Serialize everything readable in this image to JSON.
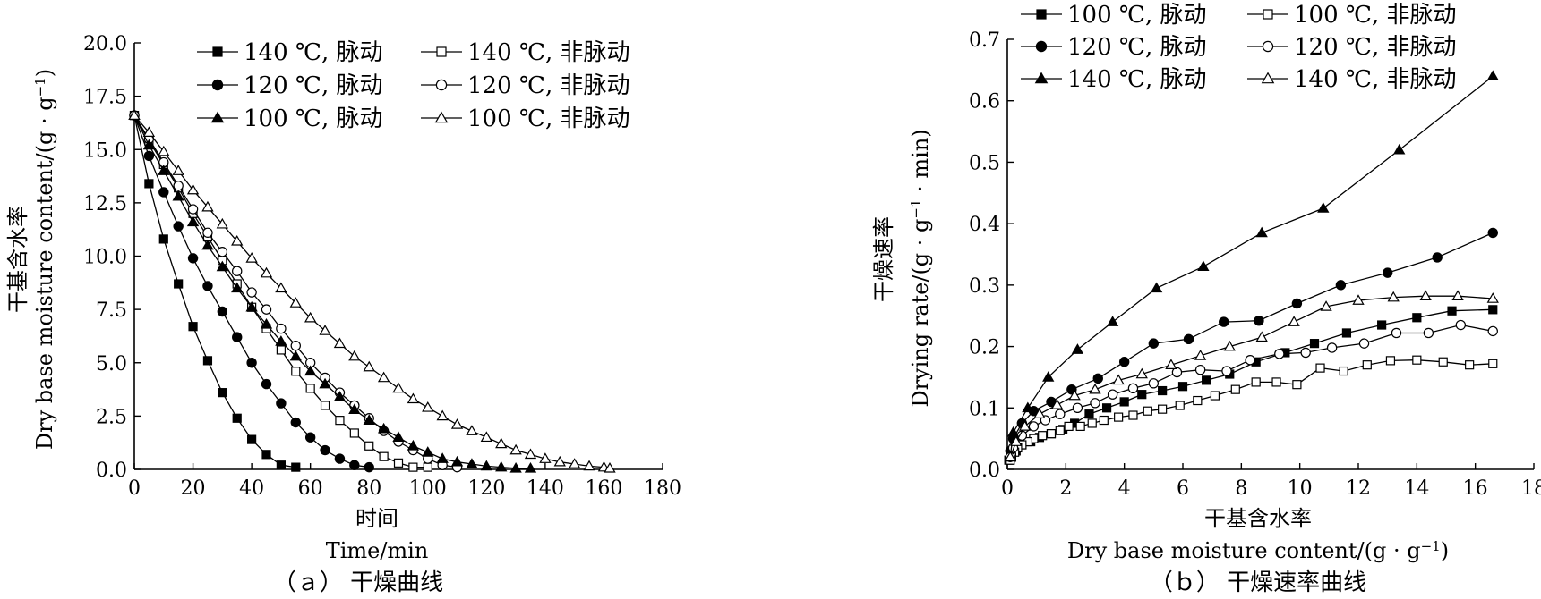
{
  "chart_data": [
    {
      "type": "line",
      "panel": "a",
      "caption": "（ａ） 干燥曲线",
      "xlabel_cn": "时间",
      "xlabel_en": "Time/min",
      "ylabel_cn": "干基含水率",
      "ylabel_en": "Dry base moisture content/(g · g",
      "ylabel_en_sup": "−1",
      "ylabel_en_end": ")",
      "xlim": [
        0,
        180
      ],
      "ylim": [
        0,
        20
      ],
      "xticks": [
        "0",
        "20",
        "40",
        "60",
        "80",
        "100",
        "120",
        "140",
        "160",
        "180"
      ],
      "yticks": [
        "0.0",
        "2.5",
        "5.0",
        "7.5",
        "10.0",
        "12.5",
        "15.0",
        "17.5",
        "20.0"
      ],
      "legend": {
        "position": "top",
        "entries": [
          "140 ℃, 脉动",
          "140 ℃, 非脉动",
          "120 ℃, 脉动",
          "120 ℃, 非脉动",
          "100 ℃, 脉动",
          "100 ℃, 非脉动"
        ]
      },
      "series": [
        {
          "name": "140 ℃, 脉动",
          "marker": "square",
          "filled": true,
          "x": [
            0,
            5,
            10,
            15,
            20,
            25,
            30,
            35,
            40,
            45,
            50,
            55
          ],
          "y": [
            16.6,
            13.4,
            10.8,
            8.7,
            6.7,
            5.1,
            3.6,
            2.4,
            1.4,
            0.7,
            0.2,
            0.1
          ]
        },
        {
          "name": "140 ℃, 非脉动",
          "marker": "square",
          "filled": false,
          "x": [
            0,
            5,
            10,
            15,
            20,
            25,
            30,
            35,
            40,
            45,
            50,
            55,
            60,
            65,
            70,
            75,
            80,
            85,
            90,
            95,
            100
          ],
          "y": [
            16.6,
            15.4,
            14.3,
            13.2,
            12.0,
            10.9,
            9.8,
            8.7,
            7.6,
            6.6,
            5.6,
            4.6,
            3.8,
            3.0,
            2.3,
            1.7,
            1.1,
            0.6,
            0.3,
            0.1,
            0.1
          ]
        },
        {
          "name": "120 ℃, 脉动",
          "marker": "circle",
          "filled": true,
          "x": [
            0,
            5,
            10,
            15,
            20,
            25,
            30,
            35,
            40,
            45,
            50,
            55,
            60,
            65,
            70,
            75,
            80
          ],
          "y": [
            16.6,
            14.7,
            13.0,
            11.4,
            9.9,
            8.6,
            7.4,
            6.2,
            5.0,
            4.0,
            3.1,
            2.2,
            1.5,
            0.9,
            0.5,
            0.2,
            0.1
          ]
        },
        {
          "name": "120 ℃, 非脉动",
          "marker": "circle",
          "filled": false,
          "x": [
            0,
            5,
            10,
            15,
            20,
            25,
            30,
            35,
            40,
            45,
            50,
            55,
            60,
            65,
            70,
            75,
            80,
            85,
            90,
            95,
            100,
            105,
            110
          ],
          "y": [
            16.6,
            15.5,
            14.4,
            13.3,
            12.2,
            11.1,
            10.2,
            9.3,
            8.3,
            7.5,
            6.6,
            5.8,
            5.0,
            4.3,
            3.6,
            3.0,
            2.4,
            1.8,
            1.3,
            0.9,
            0.5,
            0.2,
            0.1
          ]
        },
        {
          "name": "100 ℃, 脉动",
          "marker": "triangle",
          "filled": true,
          "x": [
            0,
            5,
            10,
            15,
            20,
            25,
            30,
            35,
            40,
            45,
            50,
            55,
            60,
            65,
            70,
            75,
            80,
            85,
            90,
            95,
            100,
            105,
            110,
            115,
            120,
            125,
            130,
            135
          ],
          "y": [
            16.6,
            15.2,
            14.0,
            12.8,
            11.6,
            10.5,
            9.5,
            8.5,
            7.6,
            6.8,
            6.0,
            5.3,
            4.6,
            4.0,
            3.4,
            2.8,
            2.3,
            1.9,
            1.5,
            1.1,
            0.8,
            0.5,
            0.35,
            0.25,
            0.15,
            0.1,
            0.05,
            0.05
          ]
        },
        {
          "name": "100 ℃, 非脉动",
          "marker": "triangle",
          "filled": false,
          "x": [
            0,
            5,
            10,
            15,
            20,
            25,
            30,
            35,
            40,
            45,
            50,
            55,
            60,
            65,
            70,
            75,
            80,
            85,
            90,
            95,
            100,
            105,
            110,
            115,
            120,
            125,
            130,
            135,
            140,
            145,
            150,
            155,
            160,
            162
          ],
          "y": [
            16.6,
            15.8,
            14.9,
            14.0,
            13.1,
            12.3,
            11.5,
            10.7,
            9.9,
            9.2,
            8.5,
            7.8,
            7.1,
            6.5,
            5.9,
            5.3,
            4.8,
            4.3,
            3.8,
            3.3,
            2.9,
            2.5,
            2.1,
            1.8,
            1.5,
            1.2,
            0.9,
            0.7,
            0.5,
            0.35,
            0.25,
            0.15,
            0.1,
            0.05
          ]
        }
      ]
    },
    {
      "type": "line",
      "panel": "b",
      "caption": "（ｂ） 干燥速率曲线",
      "xlabel_cn": "干基含水率",
      "xlabel_en": "Dry base moisture content/(g · g",
      "xlabel_en_sup": "−1",
      "xlabel_en_end": ")",
      "ylabel_cn": "干燥速率",
      "ylabel_en": "Drying rate/(g · g",
      "ylabel_en_sup": "−1",
      "ylabel_en_end": " · min)",
      "xlim": [
        0,
        18
      ],
      "ylim": [
        0,
        0.7
      ],
      "xticks": [
        "0",
        "2",
        "4",
        "6",
        "8",
        "10",
        "12",
        "14",
        "16",
        "18"
      ],
      "yticks": [
        "0.0",
        "0.1",
        "0.2",
        "0.3",
        "0.4",
        "0.5",
        "0.6",
        "0.7"
      ],
      "legend": {
        "position": "top",
        "entries": [
          "100 ℃, 脉动",
          "100 ℃, 非脉动",
          "120 ℃, 脉动",
          "120 ℃, 非脉动",
          "140 ℃, 脉动",
          "140 ℃, 非脉动"
        ]
      },
      "series": [
        {
          "name": "100 ℃, 脉动",
          "marker": "square",
          "filled": true,
          "x": [
            16.6,
            15.2,
            14.0,
            12.8,
            11.6,
            10.5,
            9.5,
            8.5,
            7.6,
            6.8,
            6.0,
            5.3,
            4.6,
            4.0,
            3.4,
            2.8,
            2.3,
            1.9,
            1.5,
            1.1,
            0.8,
            0.5,
            0.3,
            0.15,
            0.05
          ],
          "y": [
            0.26,
            0.258,
            0.247,
            0.235,
            0.222,
            0.205,
            0.19,
            0.175,
            0.155,
            0.145,
            0.135,
            0.128,
            0.122,
            0.11,
            0.1,
            0.09,
            0.075,
            0.065,
            0.058,
            0.052,
            0.045,
            0.04,
            0.03,
            0.02,
            0.015
          ]
        },
        {
          "name": "100 ℃, 非脉动",
          "marker": "square",
          "filled": false,
          "x": [
            16.6,
            15.8,
            14.9,
            14.0,
            13.1,
            12.3,
            11.5,
            10.7,
            9.9,
            9.2,
            8.5,
            7.8,
            7.1,
            6.5,
            5.9,
            5.3,
            4.8,
            4.3,
            3.8,
            3.3,
            2.9,
            2.5,
            2.1,
            1.8,
            1.5,
            1.2,
            0.9,
            0.7,
            0.5,
            0.35,
            0.25,
            0.15,
            0.1
          ],
          "y": [
            0.172,
            0.17,
            0.175,
            0.178,
            0.177,
            0.17,
            0.16,
            0.165,
            0.138,
            0.142,
            0.142,
            0.13,
            0.12,
            0.112,
            0.104,
            0.098,
            0.095,
            0.088,
            0.085,
            0.08,
            0.075,
            0.07,
            0.07,
            0.063,
            0.058,
            0.055,
            0.05,
            0.045,
            0.04,
            0.035,
            0.028,
            0.02,
            0.015
          ]
        },
        {
          "name": "120 ℃, 脉动",
          "marker": "circle",
          "filled": true,
          "x": [
            16.6,
            14.7,
            13.0,
            11.4,
            9.9,
            8.6,
            7.4,
            6.2,
            5.0,
            4.0,
            3.1,
            2.2,
            1.5,
            0.9,
            0.5,
            0.2,
            0.1
          ],
          "y": [
            0.385,
            0.345,
            0.32,
            0.3,
            0.27,
            0.242,
            0.24,
            0.212,
            0.205,
            0.175,
            0.148,
            0.13,
            0.11,
            0.095,
            0.075,
            0.05,
            0.03
          ]
        },
        {
          "name": "120 ℃, 非脉动",
          "marker": "circle",
          "filled": false,
          "x": [
            16.6,
            15.5,
            14.4,
            13.3,
            12.2,
            11.1,
            10.2,
            9.3,
            8.3,
            7.5,
            6.6,
            5.8,
            5.0,
            4.3,
            3.6,
            3.0,
            2.4,
            1.8,
            1.3,
            0.9,
            0.5,
            0.2,
            0.1
          ],
          "y": [
            0.225,
            0.235,
            0.222,
            0.222,
            0.205,
            0.198,
            0.19,
            0.188,
            0.178,
            0.16,
            0.162,
            0.158,
            0.14,
            0.132,
            0.122,
            0.108,
            0.1,
            0.09,
            0.08,
            0.07,
            0.055,
            0.035,
            0.02
          ]
        },
        {
          "name": "140 ℃, 脉动",
          "marker": "triangle",
          "filled": true,
          "x": [
            16.6,
            13.4,
            10.8,
            8.7,
            6.7,
            5.1,
            3.6,
            2.4,
            1.4,
            0.7,
            0.2,
            0.1
          ],
          "y": [
            0.64,
            0.52,
            0.425,
            0.385,
            0.33,
            0.295,
            0.24,
            0.195,
            0.15,
            0.1,
            0.06,
            0.02
          ]
        },
        {
          "name": "140 ℃, 非脉动",
          "marker": "triangle",
          "filled": false,
          "x": [
            16.6,
            15.4,
            14.3,
            13.2,
            12.0,
            10.9,
            9.8,
            8.7,
            7.6,
            6.6,
            5.6,
            4.6,
            3.8,
            3.0,
            2.3,
            1.7,
            1.1,
            0.6,
            0.3,
            0.1
          ],
          "y": [
            0.278,
            0.282,
            0.282,
            0.28,
            0.275,
            0.265,
            0.24,
            0.215,
            0.2,
            0.185,
            0.17,
            0.155,
            0.145,
            0.13,
            0.12,
            0.105,
            0.09,
            0.07,
            0.045,
            0.02
          ]
        }
      ]
    }
  ]
}
